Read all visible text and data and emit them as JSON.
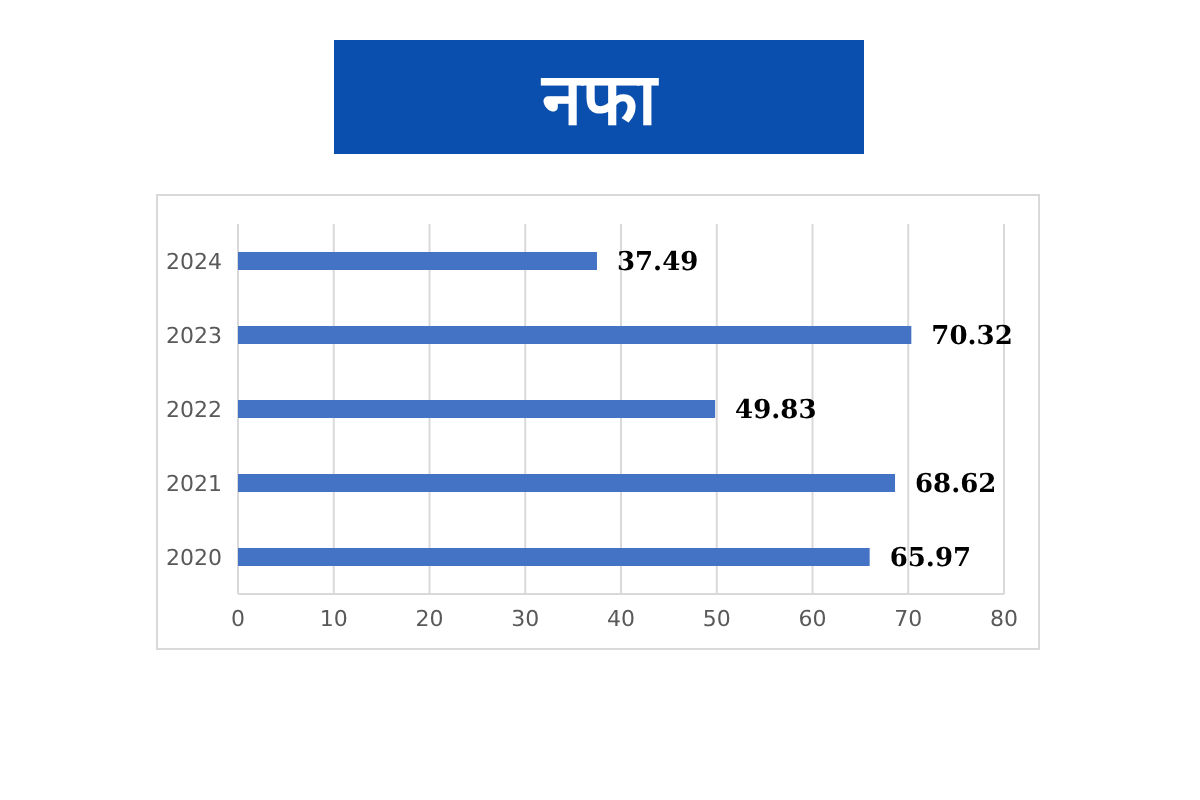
{
  "chart_data": {
    "type": "bar",
    "title": "नफा",
    "orientation": "horizontal",
    "categories": [
      "2024",
      "2023",
      "2022",
      "2021",
      "2020"
    ],
    "values": [
      37.49,
      70.32,
      49.83,
      68.62,
      65.97
    ],
    "color": "#4472c4",
    "xlim": [
      0,
      80
    ],
    "xticks": [
      0,
      10,
      20,
      30,
      40,
      50,
      60,
      70,
      80
    ],
    "grid": "x",
    "data_labels": true,
    "legend": false
  }
}
